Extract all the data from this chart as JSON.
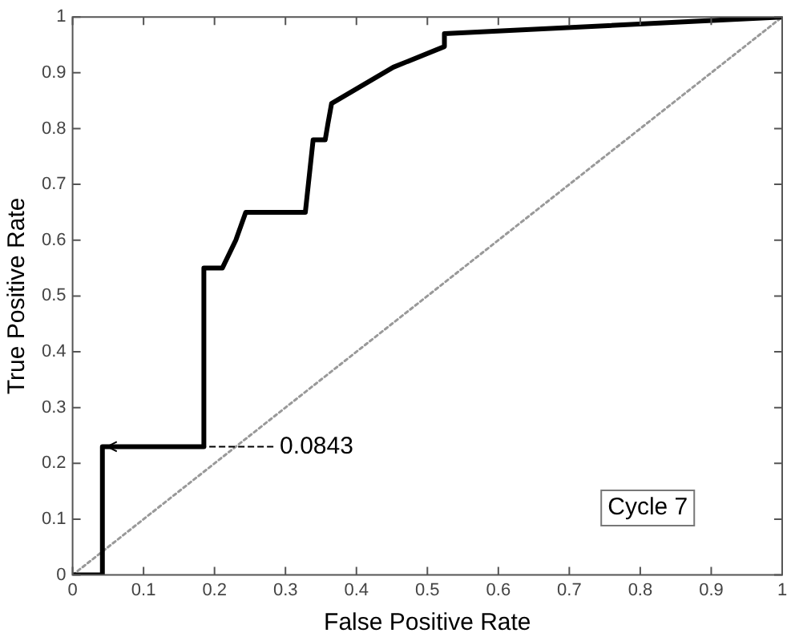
{
  "chart_data": {
    "type": "line",
    "xlabel": "False Positive Rate",
    "ylabel": "True Positive Rate",
    "xlim": [
      0,
      1
    ],
    "ylim": [
      0,
      1
    ],
    "xticks": [
      0,
      0.1,
      0.2,
      0.3,
      0.4,
      0.5,
      0.6,
      0.7,
      0.8,
      0.9,
      1
    ],
    "yticks": [
      0,
      0.1,
      0.2,
      0.3,
      0.4,
      0.5,
      0.6,
      0.7,
      0.8,
      0.9,
      1
    ],
    "grid": false,
    "legend": false,
    "marker": "none",
    "series": [
      {
        "color": "#000000",
        "line_style": "solid",
        "x": [
          0,
          0.042,
          0.042,
          0.185,
          0.185,
          0.211,
          0.23,
          0.244,
          0.328,
          0.339,
          0.356,
          0.36,
          0.365,
          0.452,
          0.524,
          0.524,
          1
        ],
        "values": [
          0,
          0,
          0.23,
          0.23,
          0.55,
          0.55,
          0.6,
          0.65,
          0.65,
          0.78,
          0.78,
          0.81,
          0.845,
          0.91,
          0.947,
          0.97,
          1
        ]
      },
      {
        "color": "#999999",
        "line_style": "dotted",
        "x": [
          0,
          1
        ],
        "values": [
          0,
          1
        ]
      }
    ],
    "annotations": [
      {
        "text": "0.0843",
        "x": 0.042,
        "y": 0.23
      },
      "Cycle 7"
    ]
  }
}
